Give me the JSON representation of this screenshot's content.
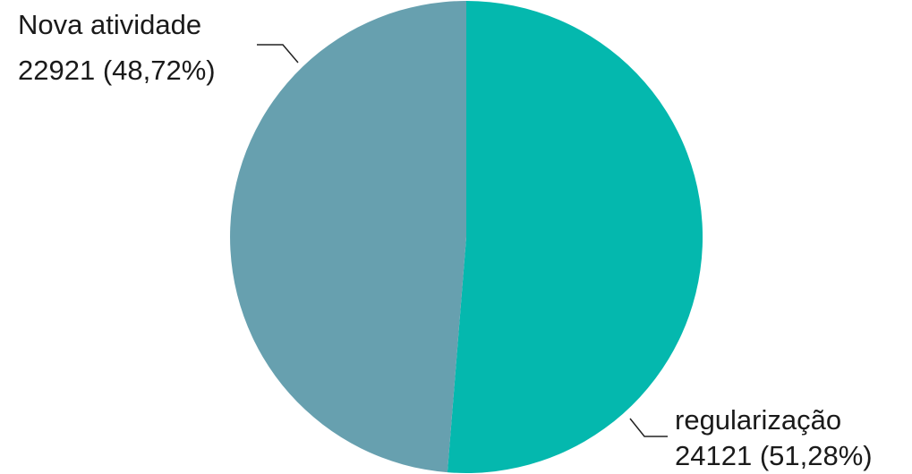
{
  "chart_data": {
    "type": "pie",
    "title": "",
    "slices": [
      {
        "name": "regularização",
        "value": 24121,
        "value_label": "24121 (51,28%)",
        "percent": 51.28,
        "color": "#04B8AE"
      },
      {
        "name": "Nova atividade",
        "value": 22921,
        "value_label": "22921 (48,72%)",
        "percent": 48.72,
        "color": "#67A0AF"
      }
    ],
    "start_angle_deg": 0,
    "direction": "clockwise",
    "legend": "none"
  }
}
